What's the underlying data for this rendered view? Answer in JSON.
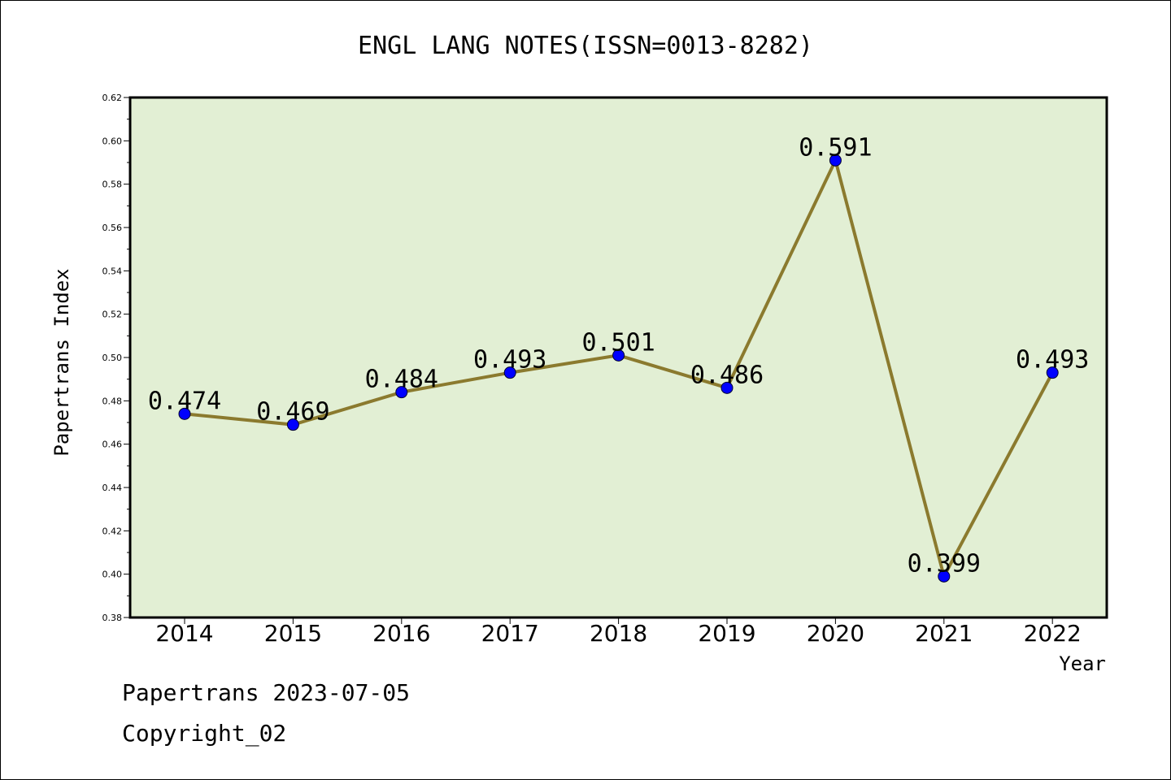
{
  "chart_data": {
    "type": "line",
    "title": "ENGL LANG NOTES(ISSN=0013-8282)",
    "xlabel": "Year",
    "ylabel": "Papertrans Index",
    "categories": [
      "2014",
      "2015",
      "2016",
      "2017",
      "2018",
      "2019",
      "2020",
      "2021",
      "2022"
    ],
    "values": [
      0.474,
      0.469,
      0.484,
      0.493,
      0.501,
      0.486,
      0.591,
      0.399,
      0.493
    ],
    "data_labels": [
      "0.474",
      "0.469",
      "0.484",
      "0.493",
      "0.501",
      "0.486",
      "0.591",
      "0.399",
      "0.493"
    ],
    "ylim": [
      0.38,
      0.62
    ],
    "yticks": [
      "0.38",
      "0.40",
      "0.42",
      "0.44",
      "0.46",
      "0.48",
      "0.50",
      "0.52",
      "0.54",
      "0.56",
      "0.58",
      "0.60",
      "0.62"
    ],
    "grid": false,
    "colors": {
      "plot_background": "#e2efd4",
      "line": "#8b7a2e",
      "marker": "#0000ff"
    }
  },
  "footer": {
    "line1": "Papertrans 2023-07-05",
    "line2": "Copyright_02"
  }
}
